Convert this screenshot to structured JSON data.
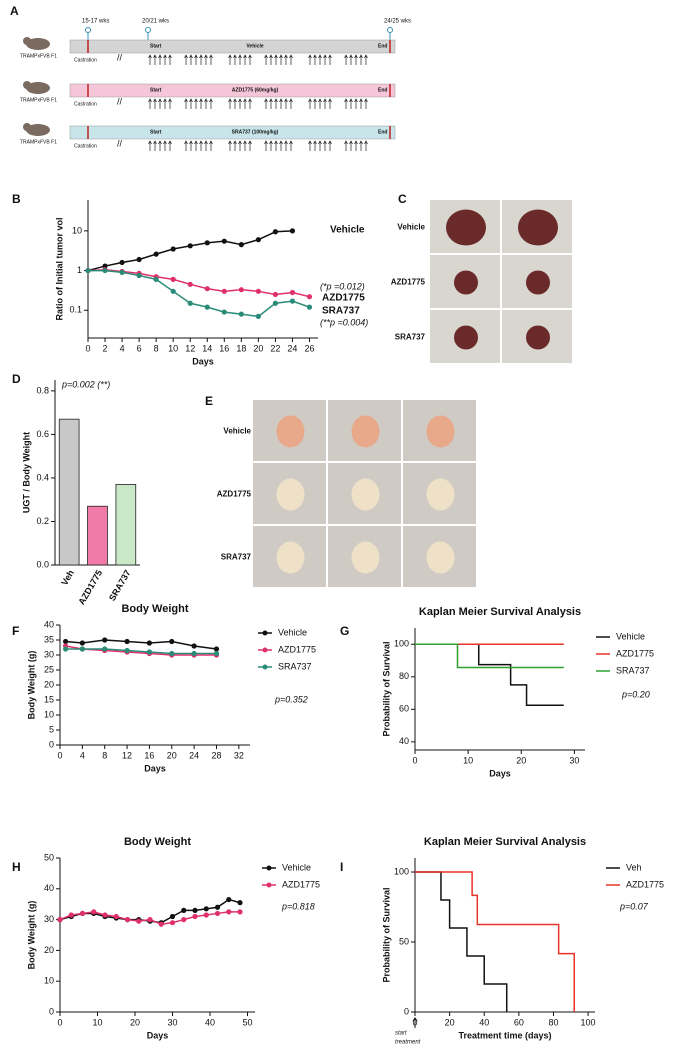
{
  "panel_labels": {
    "A": "A",
    "C": "C",
    "E": "E"
  },
  "schematic": {
    "timepoints": [
      "15-17 wks",
      "20/21 wks",
      "24/25 wks"
    ],
    "rows": [
      {
        "strain": "TRAMPxFVB F1",
        "castration": "Castration",
        "start": "Start",
        "treatment": "Vehicle",
        "end": "End"
      },
      {
        "strain": "TRAMPxFVB F1",
        "castration": "Castration",
        "start": "Start",
        "treatment": "AZD1775 (60mg/kg)",
        "end": "End"
      },
      {
        "strain": "TRAMPxFVB F1",
        "castration": "Castration",
        "start": "Start",
        "treatment": "SRA737 (100mg/kg)",
        "end": "End"
      }
    ]
  },
  "photos": [
    {
      "groups": [
        "Vehicle",
        "AZD1775",
        "SRA737"
      ]
    },
    {
      "groups": [
        "Vehicle",
        "AZD1775",
        "SRA737"
      ]
    }
  ],
  "chart_data": [
    {
      "type": "line",
      "panel": "B",
      "log": true,
      "xlabel": "Days",
      "ylabel": "Ratio of Initial tumor vol",
      "xlim": [
        0,
        27
      ],
      "ylim": [
        0.02,
        60
      ],
      "xticks": [
        0,
        2,
        4,
        6,
        8,
        10,
        12,
        14,
        16,
        18,
        20,
        22,
        24,
        26
      ],
      "yticks": [
        0.1,
        1,
        10
      ],
      "legend": "line-end",
      "annotations": [
        "(*p =0.012)",
        "(**p =0.004)"
      ],
      "series": [
        {
          "name": "Vehicle",
          "color": "#111111",
          "x": [
            0,
            2,
            4,
            6,
            8,
            10,
            12,
            14,
            16,
            18,
            20,
            22,
            24
          ],
          "values": [
            1,
            1.3,
            1.6,
            1.9,
            2.6,
            3.5,
            4.2,
            5,
            5.5,
            4.5,
            6,
            9.5,
            10
          ]
        },
        {
          "name": "AZD1775",
          "color": "#e0306a",
          "x": [
            0,
            2,
            4,
            6,
            8,
            10,
            12,
            14,
            16,
            18,
            20,
            22,
            24,
            26
          ],
          "values": [
            1,
            1.05,
            0.95,
            0.85,
            0.7,
            0.6,
            0.45,
            0.35,
            0.3,
            0.33,
            0.3,
            0.25,
            0.28,
            0.22
          ]
        },
        {
          "name": "SRA737",
          "color": "#2a8c78",
          "x": [
            0,
            2,
            4,
            6,
            8,
            10,
            12,
            14,
            16,
            18,
            20,
            22,
            24,
            26
          ],
          "values": [
            1,
            1,
            0.9,
            0.75,
            0.6,
            0.3,
            0.15,
            0.12,
            0.09,
            0.08,
            0.07,
            0.15,
            0.17,
            0.12
          ]
        }
      ]
    },
    {
      "type": "bar",
      "panel": "D",
      "ylabel": "UGT / Body Weight",
      "categories": [
        "Veh",
        "AZD1775",
        "SRA737"
      ],
      "values": [
        0.67,
        0.27,
        0.37
      ],
      "colors": [
        "#c8c8c8",
        "#f07aa8",
        "#c8e8c8"
      ],
      "ylim": [
        0,
        0.85
      ],
      "yticks": [
        {
          "value": 0,
          "label": "0.0"
        },
        0.2,
        0.4,
        0.6,
        0.8
      ],
      "annotations": [
        "p=0.002 (**)"
      ]
    },
    {
      "type": "line",
      "panel": "F",
      "title": "Body Weight",
      "xlabel": "Days",
      "ylabel": "Body Weight (g)",
      "xlim": [
        0,
        34
      ],
      "ylim": [
        0,
        40
      ],
      "xticks": [
        0,
        4,
        8,
        12,
        16,
        20,
        24,
        28,
        32
      ],
      "yticks": [
        0,
        5,
        10,
        15,
        20,
        25,
        30,
        35,
        40
      ],
      "legend": "right",
      "annotations": [
        "p=0.352"
      ],
      "series": [
        {
          "name": "Vehicle",
          "color": "#111111",
          "x": [
            1,
            4,
            8,
            12,
            16,
            20,
            24,
            28
          ],
          "values": [
            34.5,
            34,
            35,
            34.5,
            34,
            34.5,
            33,
            32
          ]
        },
        {
          "name": "AZD1775",
          "color": "#e0306a",
          "x": [
            1,
            4,
            8,
            12,
            16,
            20,
            24,
            28
          ],
          "values": [
            33,
            32,
            31.5,
            31,
            30.5,
            30,
            30,
            30
          ]
        },
        {
          "name": "SRA737",
          "color": "#2a8c78",
          "x": [
            1,
            4,
            8,
            12,
            16,
            20,
            24,
            28
          ],
          "values": [
            32,
            32,
            32,
            31.5,
            31,
            30.5,
            30.5,
            30.5
          ]
        }
      ]
    },
    {
      "type": "step",
      "panel": "G",
      "title": "Kaplan Meier Survival Analysis",
      "xlabel": "Days",
      "ylabel": "Probability of Survival",
      "xlim": [
        0,
        32
      ],
      "ylim": [
        35,
        110
      ],
      "xticks": [
        0,
        10,
        20,
        30
      ],
      "yticks": [
        40,
        60,
        80,
        100
      ],
      "legend": "right",
      "annotations": [
        "p=0.20"
      ],
      "series": [
        {
          "name": "Vehicle",
          "color": "#111111",
          "x": [
            0,
            12,
            18,
            21,
            28
          ],
          "values": [
            100,
            87.5,
            75,
            62.5,
            62.5
          ]
        },
        {
          "name": "AZD1775",
          "color": "#e8332a",
          "x": [
            0,
            28
          ],
          "values": [
            100,
            100
          ]
        },
        {
          "name": "SRA737",
          "color": "#2fa02f",
          "x": [
            0,
            8,
            28
          ],
          "values": [
            100,
            85.7,
            85.7
          ]
        }
      ]
    },
    {
      "type": "line",
      "panel": "H",
      "title": "Body Weight",
      "xlabel": "Days",
      "ylabel": "Body Weight (g)",
      "xlim": [
        0,
        52
      ],
      "ylim": [
        0,
        50
      ],
      "xticks": [
        0,
        10,
        20,
        30,
        40,
        50
      ],
      "yticks": [
        0,
        10,
        20,
        30,
        40,
        50
      ],
      "legend": "right",
      "annotations": [
        "p=0.818"
      ],
      "series": [
        {
          "name": "Vehicle",
          "color": "#111111",
          "x": [
            0,
            3,
            6,
            9,
            12,
            15,
            18,
            21,
            24,
            27,
            30,
            33,
            36,
            39,
            42,
            45,
            48
          ],
          "values": [
            30,
            31,
            32,
            32,
            31,
            30.5,
            30,
            30,
            29.5,
            29,
            31,
            33,
            33,
            33.5,
            34,
            36.5,
            35.5
          ]
        },
        {
          "name": "AZD1775",
          "color": "#e0306a",
          "x": [
            0,
            3,
            6,
            9,
            12,
            15,
            18,
            21,
            24,
            27,
            30,
            33,
            36,
            39,
            42,
            45,
            48
          ],
          "values": [
            30,
            31.5,
            32,
            32.5,
            31.5,
            31,
            30,
            29.5,
            30,
            28.5,
            29,
            30,
            31,
            31.5,
            32,
            32.5,
            32.5
          ]
        }
      ]
    },
    {
      "type": "step",
      "panel": "I",
      "title": "Kaplan Meier Survival Analysis",
      "xlabel": "Treatment time (days)",
      "ylabel": "Probability of Survival",
      "xlim": [
        0,
        104
      ],
      "ylim": [
        0,
        110
      ],
      "xticks": [
        0,
        20,
        40,
        60,
        80,
        100
      ],
      "yticks": [
        0,
        50,
        100
      ],
      "legend": "right",
      "annotations": [
        "p=0.07",
        "start",
        "treatment"
      ],
      "series": [
        {
          "name": "Veh",
          "color": "#111111",
          "x": [
            0,
            15,
            20,
            30,
            40,
            53
          ],
          "values": [
            100,
            80,
            60,
            40,
            20,
            0
          ]
        },
        {
          "name": "AZD1775",
          "color": "#e8332a",
          "x": [
            0,
            33,
            36,
            83,
            92
          ],
          "values": [
            100,
            83.3,
            62.5,
            41.7,
            0
          ]
        }
      ]
    }
  ]
}
